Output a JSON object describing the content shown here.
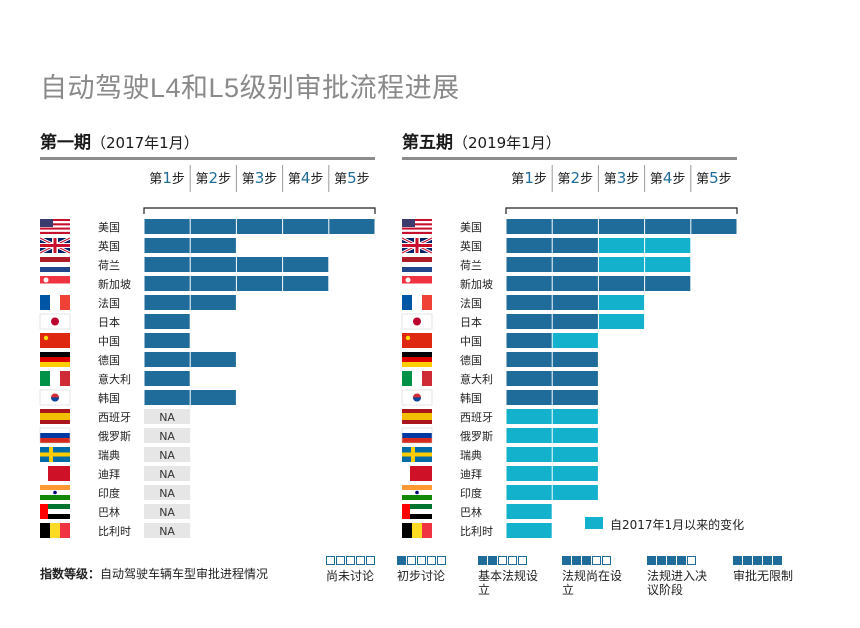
{
  "title": "自动驾驶L4和L5级别审批流程进展",
  "left_section": {
    "title": "第一期",
    "sub": "（2017年1月）"
  },
  "right_section": {
    "title": "第五期",
    "sub": "（2019年1月）"
  },
  "steps": [
    {
      "pre": "第",
      "num": "1",
      "post": "步"
    },
    {
      "pre": "第",
      "num": "2",
      "post": "步"
    },
    {
      "pre": "第",
      "num": "3",
      "post": "步"
    },
    {
      "pre": "第",
      "num": "4",
      "post": "步"
    },
    {
      "pre": "第",
      "num": "5",
      "post": "步"
    }
  ],
  "colors": {
    "base": "#1f6b99",
    "change": "#14b1cc",
    "na_bg": "#e6e6e6",
    "step_num": "#1f6b99"
  },
  "footer": {
    "label": "指数等级：",
    "desc": "自动驾驶车辆车型审批进程情况",
    "levels": [
      {
        "label": "尚未讨论",
        "filled": 0
      },
      {
        "label": "初步讨论",
        "filled": 1
      },
      {
        "label": "基本法规设立",
        "filled": 2
      },
      {
        "label": "法规尚在设立",
        "filled": 3
      },
      {
        "label": "法规进入决议阶段",
        "filled": 4
      },
      {
        "label": "审批无限制",
        "filled": 5
      }
    ]
  },
  "change_legend": "自2017年1月以来的变化",
  "chart_data": [
    {
      "type": "bar",
      "title": "第一期（2017年1月）",
      "categories": [
        "美国",
        "英国",
        "荷兰",
        "新加坡",
        "法国",
        "日本",
        "中国",
        "德国",
        "意大利",
        "韩国",
        "西班牙",
        "俄罗斯",
        "瑞典",
        "迪拜",
        "印度",
        "巴林",
        "比利时"
      ],
      "xlabel": "",
      "ylabel": "",
      "xlim": [
        0,
        5
      ],
      "values": [
        5,
        2,
        4,
        4,
        2,
        1,
        1,
        2,
        1,
        2,
        null,
        null,
        null,
        null,
        null,
        null,
        null
      ],
      "na_label": "NA"
    },
    {
      "type": "bar",
      "title": "第五期（2019年1月）",
      "categories": [
        "美国",
        "英国",
        "荷兰",
        "新加坡",
        "法国",
        "日本",
        "中国",
        "德国",
        "意大利",
        "韩国",
        "西班牙",
        "俄罗斯",
        "瑞典",
        "迪拜",
        "印度",
        "巴林",
        "比利时"
      ],
      "xlabel": "",
      "ylabel": "",
      "xlim": [
        0,
        5
      ],
      "series": [
        {
          "name": "",
          "values": [
            5,
            2,
            2,
            4,
            2,
            2,
            1,
            2,
            2,
            2,
            0,
            0,
            0,
            0,
            0,
            0,
            0
          ]
        },
        {
          "name": "自2017年1月以来的变化",
          "values": [
            0,
            2,
            2,
            0,
            1,
            1,
            1,
            0,
            0,
            0,
            2,
            2,
            2,
            2,
            2,
            1,
            1
          ]
        }
      ]
    }
  ]
}
